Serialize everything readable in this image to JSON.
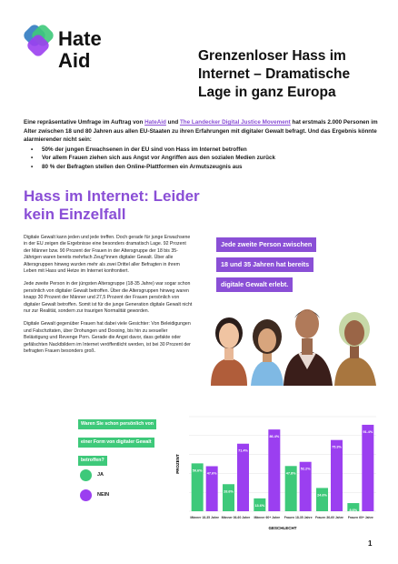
{
  "brand": {
    "name_line1": "Hate",
    "name_line2": "Aid",
    "colors": {
      "purple": "#8a4fd6",
      "green": "#3ec97a",
      "blue": "#3b82c4"
    }
  },
  "headline": "Grenzenloser Hass im Internet – Dramatische Lage in ganz Europa",
  "intro": {
    "p1": "Eine repräsentative Umfrage im Auftrag von ",
    "link1": "HateAid",
    "p2": " und ",
    "link2": "The Landecker Digital Justice Movement",
    "p3": " hat erstmals 2.000 Personen im Alter zwischen 18 und 80 Jahren aus allen EU-Staaten zu ihren Erfahrungen mit digitaler Gewalt befragt. Und das Ergebnis könnte alarmierender nicht sein:",
    "bullets": [
      "50% der jungen Erwachsenen in der EU sind von Hass im Internet betroffen",
      "Vor allem Frauen ziehen sich aus Angst vor Angriffen aus den sozialen Medien zurück",
      "80 % der Befragten stellen den Online-Plattformen ein Armutszeugnis aus"
    ]
  },
  "section_title": "Hass im Internet: Leider kein Einzelfall",
  "body": [
    "Digitale Gewalt kann jeden und jede treffen. Doch gerade für junge Erwachsene in der EU zeigen die Ergebnisse eine besonders dramatisch Lage. 92 Prozent der Männer bzw. 90 Prozent der Frauen in der Altersgruppe der 18 bis 35-Jährigen waren bereits mehrfach Zeug*innen digitaler Gewalt. Über alle Altersgruppen hinweg wurden mehr als zwei Drittel aller Befragten in ihrem Leben mit Hass und Hetze im Internet konfrontiert.",
    "Jede zweite Person in der jüngsten Altersgruppe (18-35 Jahre) war sogar schon persönlich von digitaler Gewalt betroffen. Über die Altersgruppen hinweg waren knapp 30 Prozent der Männer und 27,5 Prozent der Frauen persönlich von digitaler Gewalt betroffen. Somit ist für die junge Generation digitale Gewalt nicht nur zur Realität, sondern zur traurigen Normalität geworden.",
    "Digitale Gewalt gegenüber Frauen hat dabei viele Gesichter: Von Beleidigungen und Falschzitaten, über Drohungen und Doxxing, bis hin zu sexueller Belästigung und Revenge Porn. Gerade die Angst davor, dass gefakte oder gefälschten Nacktbildern im Internet veröffentlicht werden, ist bei 30 Prozent der befragten Frauen besonders groß."
  ],
  "quote_lines": [
    "Jede zweite Person zwischen",
    "18 und 35 Jahren hat bereits",
    "digitale Gewalt erlebt."
  ],
  "survey_question_lines": [
    "Waren Sie schon persönlich von",
    "einer Form von digitaler Gewalt",
    "betroffen?"
  ],
  "legend": [
    {
      "label": "JA",
      "color": "#3ec97a"
    },
    {
      "label": "NEIN",
      "color": "#9b3ff0"
    }
  ],
  "chart_data": {
    "type": "bar",
    "categories": [
      "Männer 18-35 Jahre",
      "Männer 36-60 Jahre",
      "Männer 60+ Jahre",
      "Frauen 18-35 Jahre",
      "Frauen 36-60 Jahre",
      "Frauen 60+ Jahre"
    ],
    "series": [
      {
        "name": "JA",
        "color": "#3ec97a",
        "values": [
          50.6,
          28.6,
          13.6,
          47.8,
          24.6,
          8.6
        ]
      },
      {
        "name": "NEIN",
        "color": "#9b3ff0",
        "values": [
          47.6,
          71.4,
          86.4,
          52.2,
          75.3,
          91.4
        ]
      }
    ],
    "xlabel": "GESCHLECHT",
    "ylabel": "PROZENT",
    "ylim": [
      0,
      100
    ]
  },
  "page_number": "1"
}
